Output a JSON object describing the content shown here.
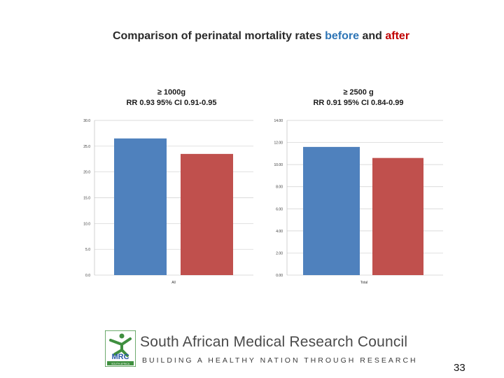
{
  "slide": {
    "title_parts": {
      "prefix": "Comparison of perinatal mortality rates ",
      "before": "before",
      "middle": " and ",
      "after": "after"
    },
    "colors": {
      "before": "#4f81bd",
      "after": "#c0504d",
      "title_before": "#2e75b6",
      "title_after": "#c00000"
    },
    "page_number": "33"
  },
  "chart_data": [
    {
      "type": "bar",
      "title_line1": "≥ 1000g",
      "title_line2": "RR 0.93 95% CI 0.91-0.95",
      "categories": [
        "All"
      ],
      "series": [
        {
          "name": "before",
          "values": [
            26.5
          ]
        },
        {
          "name": "after",
          "values": [
            23.5
          ]
        }
      ],
      "ylim": [
        0,
        30
      ],
      "yticks": [
        "0.0",
        "5.0",
        "10.0",
        "15.0",
        "20.0",
        "25.0",
        "30.0"
      ],
      "grid": true
    },
    {
      "type": "bar",
      "title_line1": "≥ 2500 g",
      "title_line2": "RR 0.91 95% CI 0.84-0.99",
      "categories": [
        "Total"
      ],
      "series": [
        {
          "name": "before",
          "values": [
            11.6
          ]
        },
        {
          "name": "after",
          "values": [
            10.6
          ]
        }
      ],
      "ylim": [
        0,
        14
      ],
      "yticks": [
        "0.00",
        "2.00",
        "4.00",
        "6.00",
        "8.00",
        "10.00",
        "12.00",
        "14.00"
      ],
      "grid": true
    }
  ],
  "footer": {
    "logo_text": "MRC",
    "logo_subtext": "SOUTH AFRICA",
    "org_name": "South African Medical Research Council",
    "tagline": "BUILDING A HEALTHY NATION THROUGH RESEARCH"
  }
}
